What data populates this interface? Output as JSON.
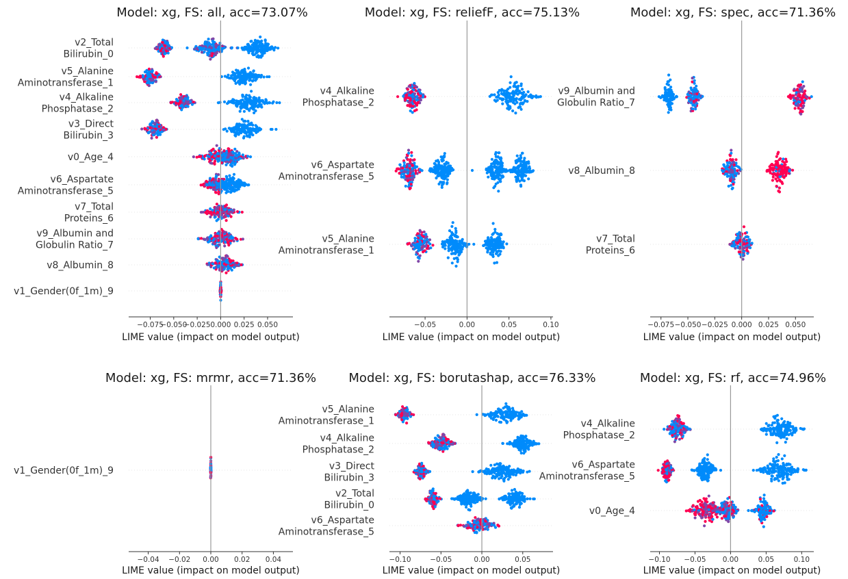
{
  "chart_data": [
    {
      "type": "scatter",
      "title": "Model: xg, FS: all, acc=73.07%",
      "xlabel": "LIME value (impact on model output)",
      "xlim": [
        -0.098,
        0.077
      ],
      "xticks": [
        -0.075,
        -0.05,
        -0.025,
        0.0,
        0.025,
        0.05
      ],
      "xtick_labels": [
        "−0.075",
        "−0.050",
        "−0.025",
        "0.000",
        "0.025",
        "0.050"
      ],
      "colors": {
        "low": "#008bfb",
        "high": "#ff0052"
      },
      "features": [
        {
          "label": [
            "v2_Total",
            "Bilirubin_0"
          ],
          "clusters": [
            [
              -0.06,
              0.004,
              0.38
            ],
            [
              -0.01,
              0.009,
              0.12
            ],
            [
              0.04,
              0.009,
              0.0
            ]
          ]
        },
        {
          "label": [
            "v5_Alanine",
            "Aminotransferase_1"
          ],
          "clusters": [
            [
              -0.075,
              0.005,
              0.35
            ],
            [
              0.025,
              0.009,
              0.0
            ]
          ]
        },
        {
          "label": [
            "v4_Alkaline",
            "Phosphatase_2"
          ],
          "clusters": [
            [
              -0.04,
              0.005,
              0.38
            ],
            [
              0.03,
              0.012,
              0.0
            ]
          ]
        },
        {
          "label": [
            "v3_Direct",
            "Bilirubin_3"
          ],
          "clusters": [
            [
              -0.07,
              0.005,
              0.38
            ],
            [
              0.025,
              0.009,
              0.0
            ]
          ]
        },
        {
          "label": [
            "v0_Age_4"
          ],
          "clusters": [
            [
              -0.005,
              0.01,
              0.5
            ],
            [
              0.01,
              0.008,
              0.2
            ]
          ]
        },
        {
          "label": [
            "v6_Aspartate",
            "Aminotransferase_5"
          ],
          "clusters": [
            [
              -0.005,
              0.007,
              0.5
            ],
            [
              0.01,
              0.008,
              0.0
            ]
          ]
        },
        {
          "label": [
            "v7_Total",
            "Proteins_6"
          ],
          "clusters": [
            [
              0.0,
              0.008,
              0.5
            ]
          ]
        },
        {
          "label": [
            "v9_Albumin and",
            "Globulin Ratio_7"
          ],
          "clusters": [
            [
              0.0,
              0.009,
              0.45
            ]
          ]
        },
        {
          "label": [
            "v8_Albumin_8"
          ],
          "clusters": [
            [
              0.003,
              0.008,
              0.45
            ]
          ]
        },
        {
          "label": [
            "v1_Gender(0f_1m)_9"
          ],
          "clusters": [
            [
              0.0,
              0.0003,
              0.5
            ]
          ]
        }
      ]
    },
    {
      "type": "scatter",
      "title": "Model: xg, FS: reliefF, acc=75.13%",
      "xlabel": "LIME value (impact on model output)",
      "xlim": [
        -0.0925,
        0.1025
      ],
      "xticks": [
        -0.05,
        0.0,
        0.05,
        0.1
      ],
      "xtick_labels": [
        "−0.05",
        "0.00",
        "0.05",
        "0.10"
      ],
      "colors": {
        "low": "#008bfb",
        "high": "#ff0052"
      },
      "features": [
        {
          "label": [
            "v4_Alkaline",
            "Phosphatase_2"
          ],
          "clusters": [
            [
              -0.065,
              0.006,
              0.4
            ],
            [
              0.055,
              0.012,
              0.0
            ]
          ]
        },
        {
          "label": [
            "v6_Aspartate",
            "Aminotransferase_5"
          ],
          "clusters": [
            [
              -0.07,
              0.006,
              0.4
            ],
            [
              -0.03,
              0.006,
              0.0
            ],
            [
              0.035,
              0.006,
              0.0
            ],
            [
              0.065,
              0.006,
              0.0
            ]
          ]
        },
        {
          "label": [
            "v5_Alanine",
            "Aminotransferase_1"
          ],
          "clusters": [
            [
              -0.055,
              0.006,
              0.4
            ],
            [
              -0.015,
              0.007,
              0.0
            ],
            [
              0.033,
              0.006,
              0.0
            ]
          ]
        }
      ]
    },
    {
      "type": "scatter",
      "title": "Model: xg, FS: spec, acc=71.36%",
      "xlabel": "LIME value (impact on model output)",
      "xlim": [
        -0.085,
        0.067
      ],
      "xticks": [
        -0.075,
        -0.05,
        -0.025,
        0.0,
        0.025,
        0.05
      ],
      "xtick_labels": [
        "−0.075",
        "−0.050",
        "−0.025",
        "0.000",
        "0.025",
        "0.050"
      ],
      "colors": {
        "low": "#008bfb",
        "high": "#ff0052"
      },
      "features": [
        {
          "label": [
            "v9_Albumin and",
            "Globulin Ratio_7"
          ],
          "clusters": [
            [
              -0.068,
              0.003,
              0.0
            ],
            [
              -0.045,
              0.003,
              0.3
            ],
            [
              0.054,
              0.004,
              0.8
            ]
          ]
        },
        {
          "label": [
            "v8_Albumin_8"
          ],
          "clusters": [
            [
              -0.01,
              0.004,
              0.25
            ],
            [
              0.035,
              0.005,
              0.9
            ]
          ]
        },
        {
          "label": [
            "v7_Total",
            "Proteins_6"
          ],
          "clusters": [
            [
              0.0,
              0.005,
              0.45
            ]
          ]
        }
      ]
    },
    {
      "type": "scatter",
      "title": "Model: xg, FS: mrmr, acc=71.36%",
      "xlabel": "LIME value (impact on model output)",
      "xlim": [
        -0.0525,
        0.0525
      ],
      "xticks": [
        -0.04,
        -0.02,
        0.0,
        0.02,
        0.04
      ],
      "xtick_labels": [
        "−0.04",
        "−0.02",
        "0.00",
        "0.02",
        "0.04"
      ],
      "colors": {
        "low": "#008bfb",
        "high": "#ff0052"
      },
      "features": [
        {
          "label": [
            "v1_Gender(0f_1m)_9"
          ],
          "clusters": [
            [
              0.0,
              8e-05,
              0.5
            ]
          ]
        }
      ]
    },
    {
      "type": "scatter",
      "title": "Model: xg, FS: borutashap, acc=76.33%",
      "xlabel": "LIME value (impact on model output)",
      "xlim": [
        -0.113,
        0.087
      ],
      "xticks": [
        -0.1,
        -0.05,
        0.0,
        0.05
      ],
      "xtick_labels": [
        "−0.10",
        "−0.05",
        "0.00",
        "0.05"
      ],
      "colors": {
        "low": "#008bfb",
        "high": "#ff0052"
      },
      "features": [
        {
          "label": [
            "v5_Alanine",
            "Aminotransferase_1"
          ],
          "clusters": [
            [
              -0.095,
              0.004,
              0.4
            ],
            [
              0.03,
              0.012,
              0.0
            ]
          ]
        },
        {
          "label": [
            "v4_Alkaline",
            "Phosphatase_2"
          ],
          "clusters": [
            [
              -0.05,
              0.007,
              0.4
            ],
            [
              0.05,
              0.008,
              0.0
            ]
          ]
        },
        {
          "label": [
            "v3_Direct",
            "Bilirubin_3"
          ],
          "clusters": [
            [
              -0.075,
              0.004,
              0.4
            ],
            [
              0.025,
              0.012,
              0.0
            ]
          ]
        },
        {
          "label": [
            "v2_Total",
            "Bilirubin_0"
          ],
          "clusters": [
            [
              -0.06,
              0.004,
              0.4
            ],
            [
              -0.015,
              0.008,
              0.0
            ],
            [
              0.04,
              0.008,
              0.0
            ]
          ]
        },
        {
          "label": [
            "v6_Aspartate",
            "Aminotransferase_5"
          ],
          "clusters": [
            [
              -0.003,
              0.01,
              0.45
            ]
          ]
        }
      ]
    },
    {
      "type": "scatter",
      "title": "Model: xg, FS: rf, acc=74.96%",
      "xlabel": "LIME value (impact on model output)",
      "xlim": [
        -0.113,
        0.117
      ],
      "xticks": [
        -0.1,
        -0.05,
        0.0,
        0.05,
        0.1
      ],
      "xtick_labels": [
        "−0.10",
        "−0.05",
        "0.00",
        "0.05",
        "0.10"
      ],
      "colors": {
        "low": "#008bfb",
        "high": "#ff0052"
      },
      "features": [
        {
          "label": [
            "v4_Alkaline",
            "Phosphatase_2"
          ],
          "clusters": [
            [
              -0.075,
              0.007,
              0.4
            ],
            [
              0.07,
              0.013,
              0.0
            ]
          ]
        },
        {
          "label": [
            "v6_Aspartate",
            "Aminotransferase_5"
          ],
          "clusters": [
            [
              -0.09,
              0.004,
              0.4
            ],
            [
              -0.035,
              0.007,
              0.0
            ],
            [
              0.07,
              0.013,
              0.0
            ]
          ]
        },
        {
          "label": [
            "v0_Age_4"
          ],
          "clusters": [
            [
              -0.035,
              0.012,
              0.85
            ],
            [
              -0.005,
              0.008,
              0.4
            ],
            [
              0.045,
              0.006,
              0.1
            ]
          ]
        }
      ]
    }
  ]
}
